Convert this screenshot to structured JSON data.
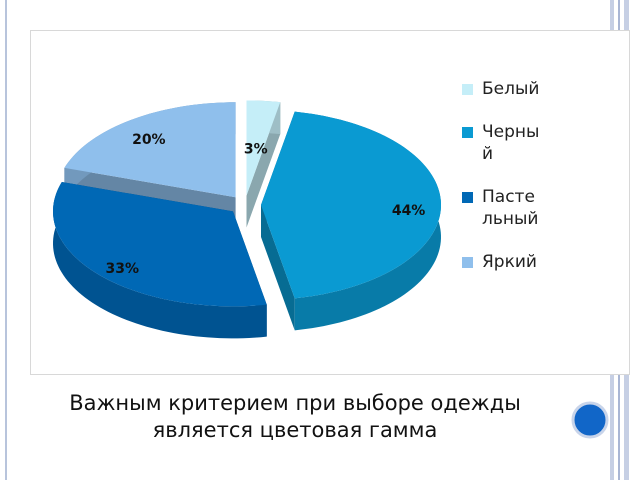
{
  "chart_data": {
    "type": "pie",
    "categories": [
      "Белый",
      "Черный",
      "Пастельный",
      "Яркий"
    ],
    "values": [
      3,
      44,
      33,
      20
    ],
    "value_labels": [
      "3%",
      "44%",
      "33%",
      "20%"
    ],
    "colors": [
      "#c5eef8",
      "#0a9ad2",
      "#0068b5",
      "#8fbfec"
    ],
    "legend": "right"
  },
  "caption": "Важным критерием при выборе одежды является цветовая гамма"
}
